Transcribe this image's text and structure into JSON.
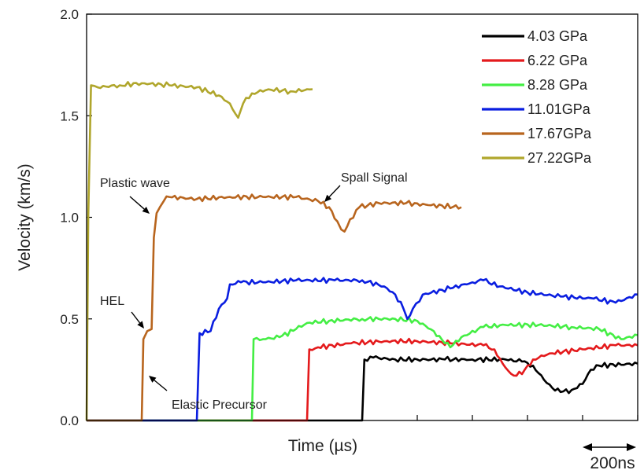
{
  "chart_data": {
    "type": "line",
    "title": "",
    "xlabel": "Time (µs)",
    "ylabel": "Velocity (km/s)",
    "xlim": [
      0,
      1000
    ],
    "ylim": [
      0,
      2.0
    ],
    "y_ticks": [
      "0.0",
      "0.5",
      "1.0",
      "1.5",
      "2.0"
    ],
    "x_tick_values": [
      0,
      100,
      200,
      300,
      400,
      500,
      600,
      700,
      800,
      900,
      1000
    ],
    "scale_bar": {
      "label": "200ns",
      "length": 100
    },
    "legend_position": "top-right",
    "annotations": [
      {
        "text": "Plastic wave",
        "x": 25,
        "y": 1.14
      },
      {
        "text": "Spall Signal",
        "x": 460,
        "y": 1.17
      },
      {
        "text": "HEL",
        "x": 25,
        "y": 0.56
      },
      {
        "text": "Elastic Precursor",
        "x": 155,
        "y": 0.06
      }
    ],
    "series": [
      {
        "name": "4.03 GPa",
        "color": "#000000",
        "points": [
          [
            0,
            0
          ],
          [
            500,
            0
          ],
          [
            504,
            0.3
          ],
          [
            520,
            0.31
          ],
          [
            560,
            0.3
          ],
          [
            600,
            0.3
          ],
          [
            650,
            0.3
          ],
          [
            700,
            0.3
          ],
          [
            760,
            0.3
          ],
          [
            790,
            0.29
          ],
          [
            810,
            0.27
          ],
          [
            830,
            0.2
          ],
          [
            845,
            0.16
          ],
          [
            860,
            0.14
          ],
          [
            880,
            0.15
          ],
          [
            900,
            0.18
          ],
          [
            915,
            0.25
          ],
          [
            930,
            0.27
          ],
          [
            1000,
            0.28
          ]
        ]
      },
      {
        "name": "6.22 GPa",
        "color": "#e41a1c",
        "points": [
          [
            0,
            0
          ],
          [
            400,
            0
          ],
          [
            404,
            0.35
          ],
          [
            420,
            0.36
          ],
          [
            480,
            0.38
          ],
          [
            540,
            0.39
          ],
          [
            600,
            0.39
          ],
          [
            660,
            0.38
          ],
          [
            720,
            0.37
          ],
          [
            740,
            0.35
          ],
          [
            755,
            0.28
          ],
          [
            770,
            0.23
          ],
          [
            780,
            0.22
          ],
          [
            795,
            0.25
          ],
          [
            810,
            0.3
          ],
          [
            840,
            0.33
          ],
          [
            900,
            0.35
          ],
          [
            960,
            0.37
          ],
          [
            1000,
            0.37
          ]
        ]
      },
      {
        "name": "8.28 GPa",
        "color": "#44ee44",
        "points": [
          [
            0,
            0
          ],
          [
            300,
            0
          ],
          [
            303,
            0.4
          ],
          [
            320,
            0.4
          ],
          [
            350,
            0.41
          ],
          [
            380,
            0.45
          ],
          [
            400,
            0.48
          ],
          [
            440,
            0.49
          ],
          [
            500,
            0.5
          ],
          [
            560,
            0.5
          ],
          [
            600,
            0.49
          ],
          [
            630,
            0.44
          ],
          [
            650,
            0.38
          ],
          [
            660,
            0.36
          ],
          [
            680,
            0.41
          ],
          [
            720,
            0.46
          ],
          [
            760,
            0.47
          ],
          [
            820,
            0.47
          ],
          [
            880,
            0.46
          ],
          [
            930,
            0.45
          ],
          [
            970,
            0.4
          ],
          [
            1000,
            0.42
          ]
        ]
      },
      {
        "name": "11.01GPa",
        "color": "#0a1ee0",
        "points": [
          [
            0,
            0
          ],
          [
            200,
            0
          ],
          [
            205,
            0.43
          ],
          [
            225,
            0.44
          ],
          [
            240,
            0.55
          ],
          [
            255,
            0.6
          ],
          [
            260,
            0.67
          ],
          [
            280,
            0.68
          ],
          [
            320,
            0.68
          ],
          [
            380,
            0.69
          ],
          [
            450,
            0.69
          ],
          [
            500,
            0.69
          ],
          [
            540,
            0.66
          ],
          [
            560,
            0.62
          ],
          [
            575,
            0.55
          ],
          [
            582,
            0.5
          ],
          [
            592,
            0.55
          ],
          [
            610,
            0.62
          ],
          [
            660,
            0.65
          ],
          [
            700,
            0.68
          ],
          [
            720,
            0.69
          ],
          [
            750,
            0.66
          ],
          [
            800,
            0.63
          ],
          [
            860,
            0.61
          ],
          [
            920,
            0.6
          ],
          [
            960,
            0.58
          ],
          [
            1000,
            0.62
          ]
        ]
      },
      {
        "name": "17.67GPa",
        "color": "#b8651e",
        "points": [
          [
            0,
            0
          ],
          [
            100,
            0
          ],
          [
            103,
            0.4
          ],
          [
            110,
            0.44
          ],
          [
            118,
            0.45
          ],
          [
            122,
            0.9
          ],
          [
            127,
            1.02
          ],
          [
            133,
            1.05
          ],
          [
            140,
            1.08
          ],
          [
            150,
            1.1
          ],
          [
            200,
            1.09
          ],
          [
            260,
            1.1
          ],
          [
            320,
            1.1
          ],
          [
            380,
            1.1
          ],
          [
            420,
            1.08
          ],
          [
            440,
            1.05
          ],
          [
            455,
            0.98
          ],
          [
            462,
            0.94
          ],
          [
            468,
            0.93
          ],
          [
            478,
            0.99
          ],
          [
            495,
            1.05
          ],
          [
            530,
            1.07
          ],
          [
            580,
            1.07
          ],
          [
            620,
            1.06
          ],
          [
            680,
            1.05
          ]
        ]
      },
      {
        "name": "27.22GPa",
        "color": "#b0a62c",
        "points": [
          [
            0,
            0
          ],
          [
            3,
            1.0
          ],
          [
            8,
            1.65
          ],
          [
            20,
            1.64
          ],
          [
            60,
            1.65
          ],
          [
            100,
            1.66
          ],
          [
            150,
            1.65
          ],
          [
            200,
            1.64
          ],
          [
            240,
            1.6
          ],
          [
            260,
            1.56
          ],
          [
            270,
            1.51
          ],
          [
            275,
            1.49
          ],
          [
            284,
            1.56
          ],
          [
            300,
            1.61
          ],
          [
            330,
            1.63
          ],
          [
            370,
            1.62
          ],
          [
            410,
            1.63
          ]
        ]
      }
    ]
  }
}
